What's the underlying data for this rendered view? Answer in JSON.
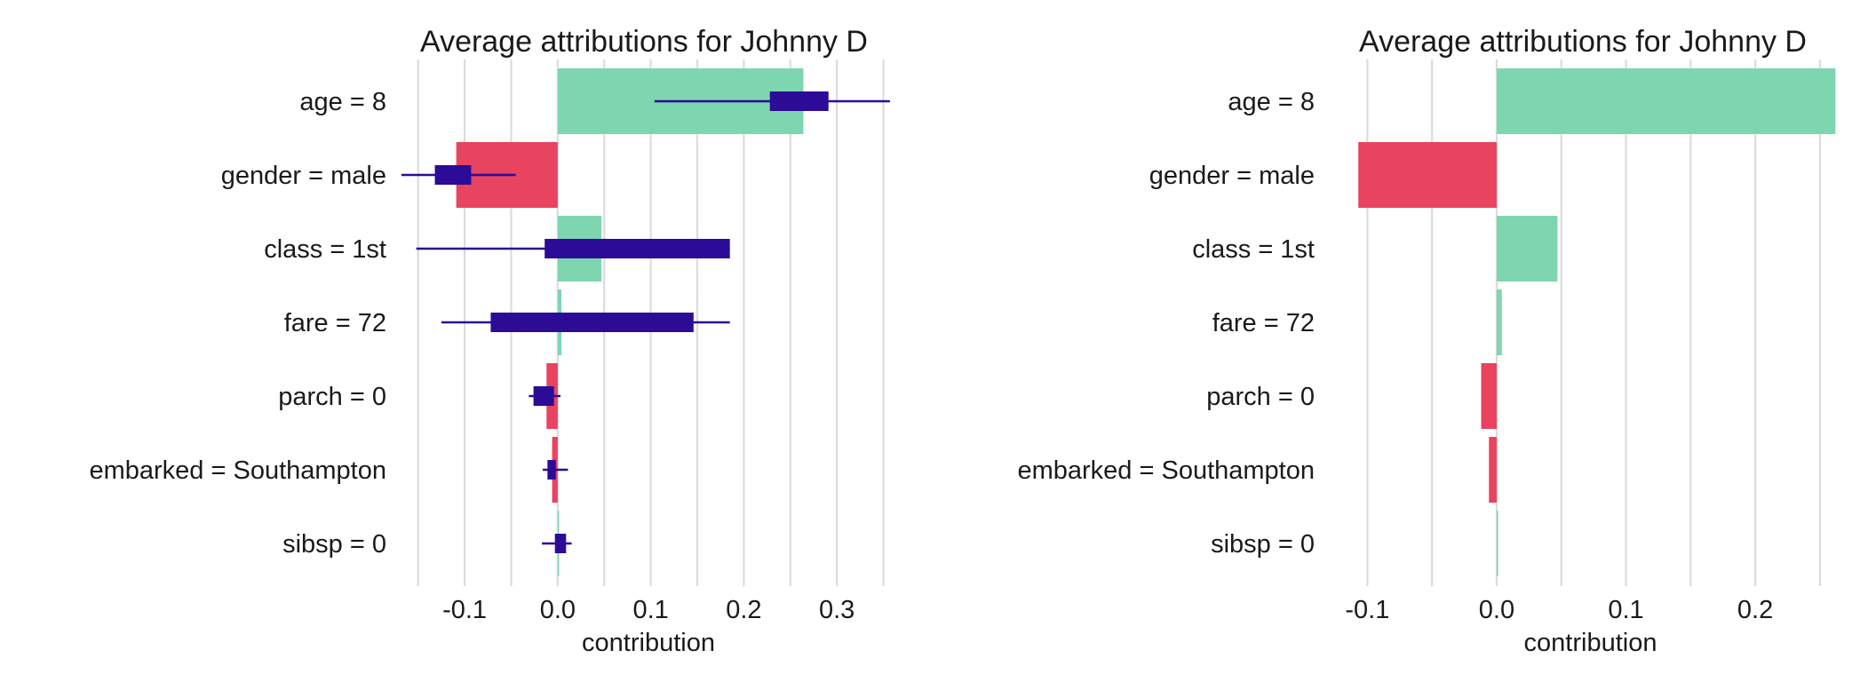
{
  "colors": {
    "positive": "#7dd6b0",
    "negative": "#e8435f",
    "boxplot": "#2c0b96",
    "grid": "#dcdcdc",
    "text": "#1a1a1a"
  },
  "chart_data": [
    {
      "type": "bar",
      "title": "Average attributions for Johnny D",
      "xlabel": "contribution",
      "ylabel": "",
      "grid": true,
      "xlim": [
        -0.165,
        0.36
      ],
      "xticks": [
        -0.1,
        0.0,
        0.1,
        0.2,
        0.3
      ],
      "xtick_labels": [
        "-0.1",
        "0.0",
        "0.1",
        "0.2",
        "0.3"
      ],
      "categories": [
        "age = 8",
        "gender = male",
        "class = 1st",
        "fare = 72",
        "parch = 0",
        "embarked = Southampton",
        "sibsp = 0"
      ],
      "values": [
        0.264,
        -0.109,
        0.047,
        0.004,
        -0.012,
        -0.006,
        0.001
      ],
      "boxplots": [
        {
          "min": 0.104,
          "q1": 0.228,
          "q3": 0.291,
          "max": 0.357
        },
        {
          "min": -0.168,
          "q1": -0.132,
          "q3": -0.093,
          "max": -0.045
        },
        {
          "min": -0.152,
          "q1": -0.014,
          "q3": 0.185,
          "max": 0.185
        },
        {
          "min": -0.125,
          "q1": -0.072,
          "q3": 0.146,
          "max": 0.185
        },
        {
          "min": -0.031,
          "q1": -0.026,
          "q3": -0.004,
          "max": 0.003
        },
        {
          "min": -0.016,
          "q1": -0.011,
          "q3": -0.002,
          "max": 0.011
        },
        {
          "min": -0.017,
          "q1": -0.003,
          "q3": 0.009,
          "max": 0.015
        }
      ]
    },
    {
      "type": "bar",
      "title": "Average attributions for Johnny D",
      "xlabel": "contribution",
      "ylabel": "",
      "grid": true,
      "xlim": [
        -0.125,
        0.27
      ],
      "xticks": [
        -0.1,
        0.0,
        0.1,
        0.2
      ],
      "xtick_labels": [
        "-0.1",
        "0.0",
        "0.1",
        "0.2"
      ],
      "categories": [
        "age = 8",
        "gender = male",
        "class = 1st",
        "fare = 72",
        "parch = 0",
        "embarked = Southampton",
        "sibsp = 0"
      ],
      "values": [
        0.262,
        -0.107,
        0.047,
        0.004,
        -0.012,
        -0.006,
        0.001
      ]
    }
  ]
}
